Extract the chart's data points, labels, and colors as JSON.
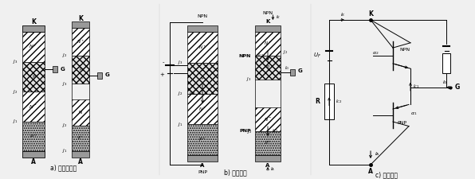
{
  "title_a": "a) 晶闸管拆分",
  "title_b": "b) 等效连接",
  "title_c": "c) 等效电路",
  "bg_color": "#f0f0f0",
  "figsize": [
    5.96,
    2.25
  ],
  "dpi": 100
}
